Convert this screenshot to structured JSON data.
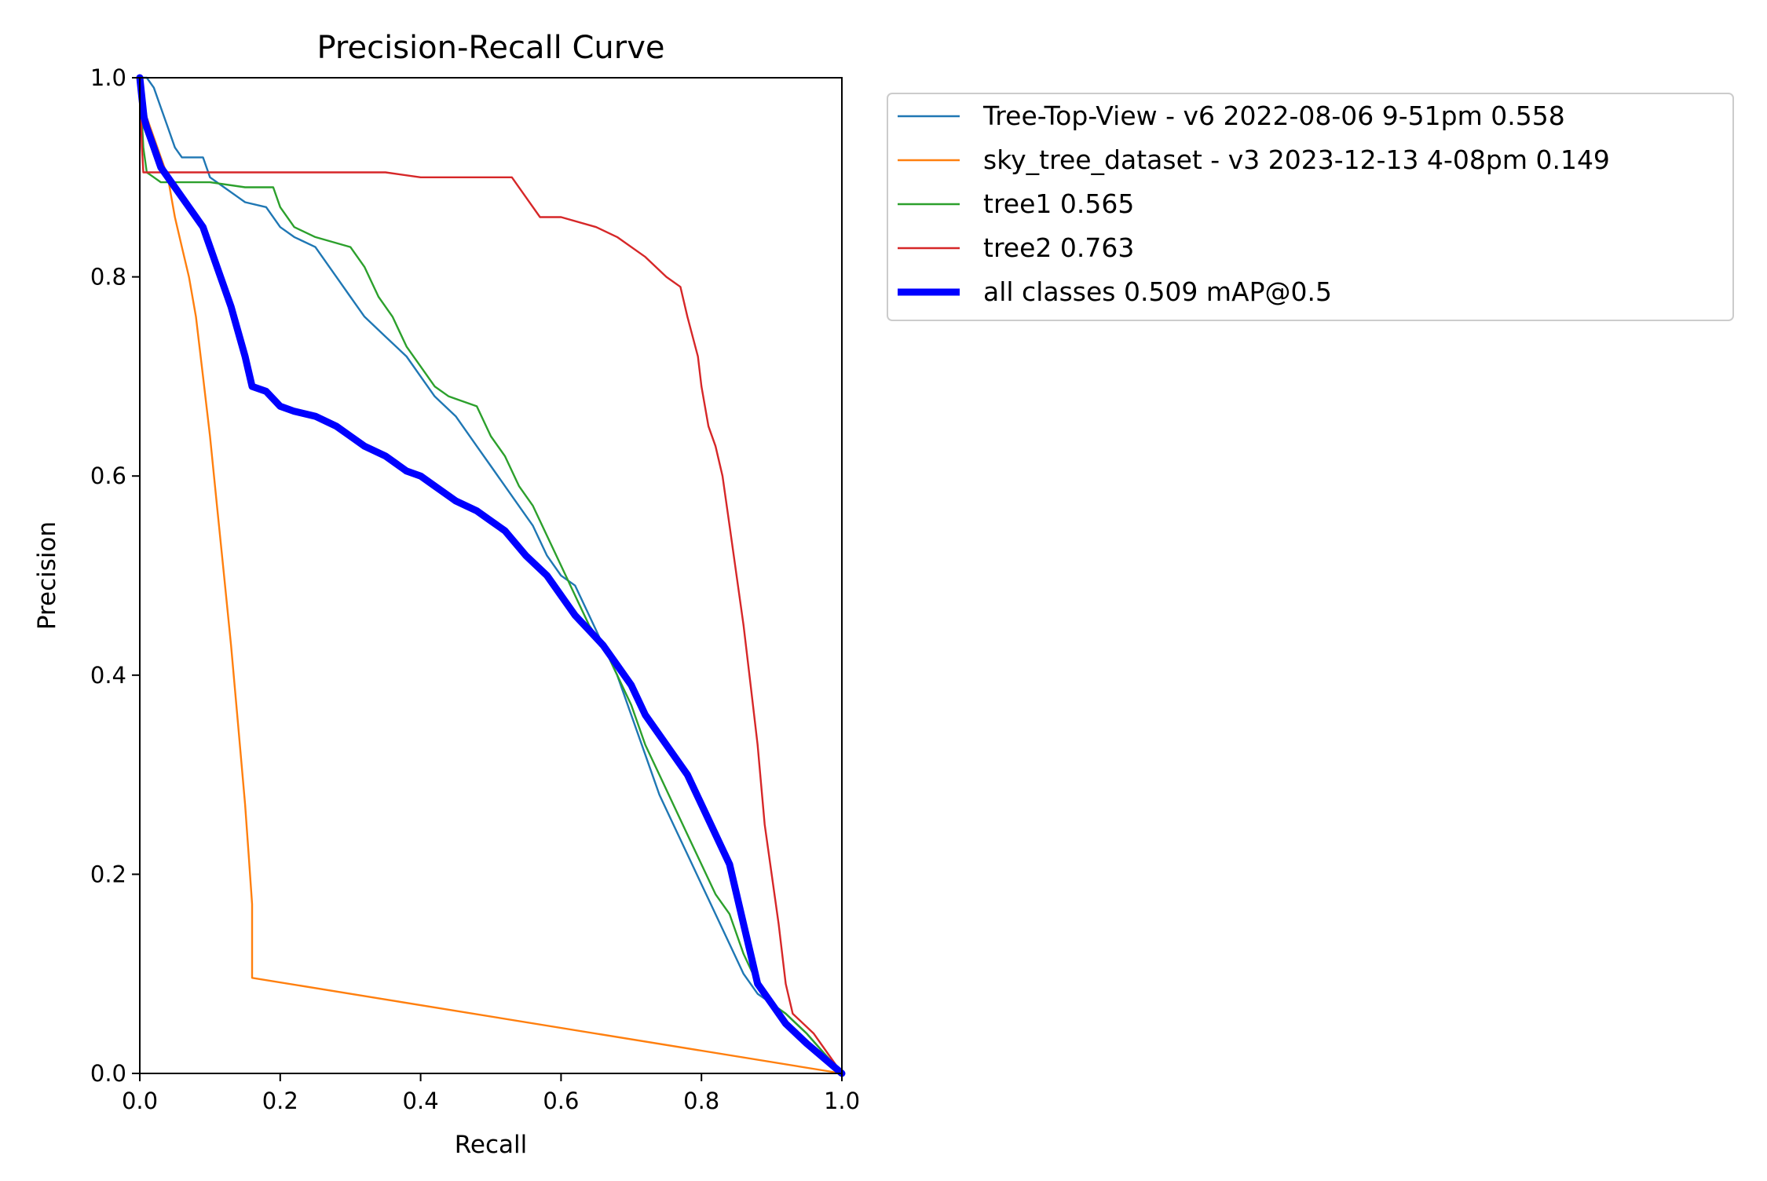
{
  "chart_data": {
    "type": "line",
    "title": "Precision-Recall Curve",
    "xlabel": "Recall",
    "ylabel": "Precision",
    "xlim": [
      0,
      1
    ],
    "ylim": [
      0,
      1
    ],
    "grid": false,
    "legend_position": "outside-top-right",
    "x_ticks": [
      "0.0",
      "0.2",
      "0.4",
      "0.6",
      "0.8",
      "1.0"
    ],
    "y_ticks": [
      "0.0",
      "0.2",
      "0.4",
      "0.6",
      "0.8",
      "1.0"
    ],
    "series": [
      {
        "name": "Tree-Top-View - v6 2022-08-06 9-51pm 0.558",
        "color": "#1f77b4",
        "style": "thin",
        "points": [
          [
            0.0,
            1.0
          ],
          [
            0.01,
            1.0
          ],
          [
            0.02,
            0.99
          ],
          [
            0.03,
            0.97
          ],
          [
            0.04,
            0.95
          ],
          [
            0.05,
            0.93
          ],
          [
            0.06,
            0.92
          ],
          [
            0.09,
            0.92
          ],
          [
            0.1,
            0.9
          ],
          [
            0.12,
            0.89
          ],
          [
            0.14,
            0.88
          ],
          [
            0.15,
            0.875
          ],
          [
            0.18,
            0.87
          ],
          [
            0.2,
            0.85
          ],
          [
            0.22,
            0.84
          ],
          [
            0.25,
            0.83
          ],
          [
            0.28,
            0.8
          ],
          [
            0.3,
            0.78
          ],
          [
            0.32,
            0.76
          ],
          [
            0.35,
            0.74
          ],
          [
            0.38,
            0.72
          ],
          [
            0.4,
            0.7
          ],
          [
            0.42,
            0.68
          ],
          [
            0.45,
            0.66
          ],
          [
            0.48,
            0.63
          ],
          [
            0.5,
            0.61
          ],
          [
            0.53,
            0.58
          ],
          [
            0.56,
            0.55
          ],
          [
            0.58,
            0.52
          ],
          [
            0.6,
            0.5
          ],
          [
            0.62,
            0.49
          ],
          [
            0.64,
            0.46
          ],
          [
            0.66,
            0.43
          ],
          [
            0.68,
            0.4
          ],
          [
            0.7,
            0.36
          ],
          [
            0.72,
            0.32
          ],
          [
            0.74,
            0.28
          ],
          [
            0.76,
            0.25
          ],
          [
            0.78,
            0.22
          ],
          [
            0.8,
            0.19
          ],
          [
            0.82,
            0.16
          ],
          [
            0.84,
            0.13
          ],
          [
            0.86,
            0.1
          ],
          [
            0.88,
            0.08
          ],
          [
            0.9,
            0.07
          ],
          [
            0.92,
            0.06
          ],
          [
            0.95,
            0.04
          ],
          [
            1.0,
            0.0
          ]
        ]
      },
      {
        "name": "sky_tree_dataset - v3 2023-12-13 4-08pm 0.149",
        "color": "#ff7f0e",
        "style": "thin",
        "points": [
          [
            0.0,
            1.0
          ],
          [
            0.005,
            0.98
          ],
          [
            0.01,
            0.96
          ],
          [
            0.02,
            0.94
          ],
          [
            0.03,
            0.92
          ],
          [
            0.04,
            0.9
          ],
          [
            0.045,
            0.88
          ],
          [
            0.05,
            0.86
          ],
          [
            0.06,
            0.83
          ],
          [
            0.07,
            0.8
          ],
          [
            0.08,
            0.76
          ],
          [
            0.09,
            0.7
          ],
          [
            0.1,
            0.64
          ],
          [
            0.11,
            0.57
          ],
          [
            0.12,
            0.5
          ],
          [
            0.13,
            0.43
          ],
          [
            0.14,
            0.35
          ],
          [
            0.15,
            0.27
          ],
          [
            0.155,
            0.22
          ],
          [
            0.16,
            0.17
          ],
          [
            0.16,
            0.096
          ],
          [
            1.0,
            0.0
          ]
        ]
      },
      {
        "name": "tree1 0.565",
        "color": "#2ca02c",
        "style": "thin",
        "points": [
          [
            0.0,
            1.0
          ],
          [
            0.005,
            0.93
          ],
          [
            0.01,
            0.905
          ],
          [
            0.02,
            0.9
          ],
          [
            0.03,
            0.895
          ],
          [
            0.1,
            0.895
          ],
          [
            0.15,
            0.89
          ],
          [
            0.19,
            0.89
          ],
          [
            0.2,
            0.87
          ],
          [
            0.22,
            0.85
          ],
          [
            0.25,
            0.84
          ],
          [
            0.3,
            0.83
          ],
          [
            0.32,
            0.81
          ],
          [
            0.34,
            0.78
          ],
          [
            0.36,
            0.76
          ],
          [
            0.38,
            0.73
          ],
          [
            0.4,
            0.71
          ],
          [
            0.42,
            0.69
          ],
          [
            0.44,
            0.68
          ],
          [
            0.48,
            0.67
          ],
          [
            0.5,
            0.64
          ],
          [
            0.52,
            0.62
          ],
          [
            0.54,
            0.59
          ],
          [
            0.56,
            0.57
          ],
          [
            0.58,
            0.54
          ],
          [
            0.6,
            0.51
          ],
          [
            0.62,
            0.48
          ],
          [
            0.64,
            0.45
          ],
          [
            0.66,
            0.43
          ],
          [
            0.68,
            0.4
          ],
          [
            0.7,
            0.37
          ],
          [
            0.72,
            0.33
          ],
          [
            0.74,
            0.3
          ],
          [
            0.76,
            0.27
          ],
          [
            0.78,
            0.24
          ],
          [
            0.8,
            0.21
          ],
          [
            0.82,
            0.18
          ],
          [
            0.84,
            0.16
          ],
          [
            0.86,
            0.12
          ],
          [
            0.88,
            0.09
          ],
          [
            0.9,
            0.07
          ],
          [
            0.92,
            0.06
          ],
          [
            0.95,
            0.04
          ],
          [
            1.0,
            0.0
          ]
        ]
      },
      {
        "name": "tree2 0.763",
        "color": "#d62728",
        "style": "thin",
        "points": [
          [
            0.0,
            1.0
          ],
          [
            0.003,
            0.93
          ],
          [
            0.005,
            0.905
          ],
          [
            0.35,
            0.905
          ],
          [
            0.4,
            0.9
          ],
          [
            0.53,
            0.9
          ],
          [
            0.55,
            0.88
          ],
          [
            0.57,
            0.86
          ],
          [
            0.6,
            0.86
          ],
          [
            0.65,
            0.85
          ],
          [
            0.68,
            0.84
          ],
          [
            0.72,
            0.82
          ],
          [
            0.75,
            0.8
          ],
          [
            0.77,
            0.79
          ],
          [
            0.78,
            0.76
          ],
          [
            0.795,
            0.72
          ],
          [
            0.8,
            0.69
          ],
          [
            0.81,
            0.65
          ],
          [
            0.82,
            0.63
          ],
          [
            0.83,
            0.6
          ],
          [
            0.84,
            0.55
          ],
          [
            0.85,
            0.5
          ],
          [
            0.86,
            0.45
          ],
          [
            0.87,
            0.39
          ],
          [
            0.88,
            0.33
          ],
          [
            0.89,
            0.25
          ],
          [
            0.9,
            0.2
          ],
          [
            0.91,
            0.15
          ],
          [
            0.92,
            0.09
          ],
          [
            0.93,
            0.06
          ],
          [
            0.96,
            0.04
          ],
          [
            1.0,
            0.0
          ]
        ]
      },
      {
        "name": "all classes 0.509 mAP@0.5",
        "color": "#0000ff",
        "style": "thick",
        "points": [
          [
            0.0,
            1.0
          ],
          [
            0.003,
            0.98
          ],
          [
            0.006,
            0.96
          ],
          [
            0.01,
            0.95
          ],
          [
            0.02,
            0.93
          ],
          [
            0.03,
            0.91
          ],
          [
            0.05,
            0.89
          ],
          [
            0.07,
            0.87
          ],
          [
            0.09,
            0.85
          ],
          [
            0.11,
            0.81
          ],
          [
            0.13,
            0.77
          ],
          [
            0.15,
            0.72
          ],
          [
            0.16,
            0.69
          ],
          [
            0.18,
            0.685
          ],
          [
            0.2,
            0.67
          ],
          [
            0.22,
            0.665
          ],
          [
            0.25,
            0.66
          ],
          [
            0.28,
            0.65
          ],
          [
            0.3,
            0.64
          ],
          [
            0.32,
            0.63
          ],
          [
            0.35,
            0.62
          ],
          [
            0.38,
            0.605
          ],
          [
            0.4,
            0.6
          ],
          [
            0.42,
            0.59
          ],
          [
            0.45,
            0.575
          ],
          [
            0.48,
            0.565
          ],
          [
            0.5,
            0.555
          ],
          [
            0.52,
            0.545
          ],
          [
            0.55,
            0.52
          ],
          [
            0.58,
            0.5
          ],
          [
            0.6,
            0.48
          ],
          [
            0.62,
            0.46
          ],
          [
            0.64,
            0.445
          ],
          [
            0.66,
            0.43
          ],
          [
            0.68,
            0.41
          ],
          [
            0.7,
            0.39
          ],
          [
            0.72,
            0.36
          ],
          [
            0.74,
            0.34
          ],
          [
            0.76,
            0.32
          ],
          [
            0.78,
            0.3
          ],
          [
            0.8,
            0.27
          ],
          [
            0.82,
            0.24
          ],
          [
            0.84,
            0.21
          ],
          [
            0.85,
            0.18
          ],
          [
            0.86,
            0.15
          ],
          [
            0.87,
            0.12
          ],
          [
            0.88,
            0.09
          ],
          [
            0.9,
            0.07
          ],
          [
            0.92,
            0.05
          ],
          [
            0.95,
            0.03
          ],
          [
            1.0,
            0.0
          ]
        ]
      }
    ]
  }
}
